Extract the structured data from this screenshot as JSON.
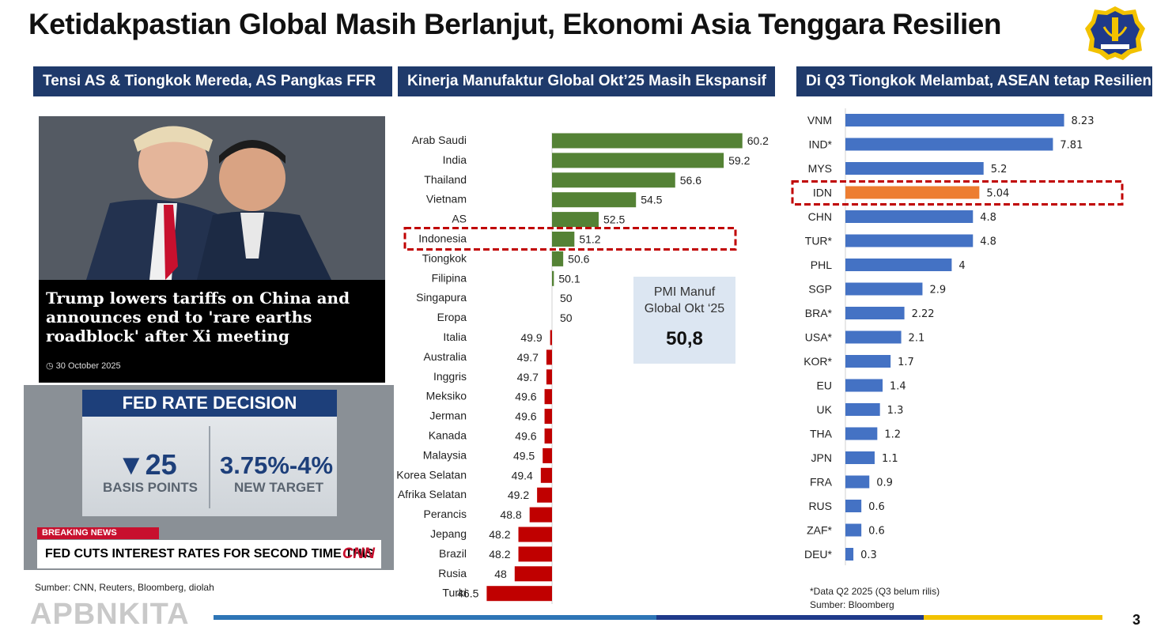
{
  "title": "Ketidakpastian Global Masih Berlanjut, Ekonomi Asia Tenggara Resilien",
  "panels": {
    "left_header": "Tensi AS & Tiongkok Mereda, AS Pangkas FFR",
    "middle_header": "Kinerja Manufaktur Global Okt’25 Masih Ekspansif",
    "right_header": "Di Q3 Tiongkok Melambat, ASEAN tetap Resilien"
  },
  "news_card": {
    "headline": "Trump lowers tariffs on China and announces end to 'rare earths roadblock' after Xi meeting",
    "date": "30 October 2025"
  },
  "fed_card": {
    "title": "FED RATE DECISION",
    "cut_value": "25",
    "cut_label": "BASIS POINTS",
    "target_value": "3.75%-4%",
    "target_label": "NEW TARGET",
    "breaking": "BREAKING NEWS",
    "ticker": "FED CUTS INTEREST RATES FOR SECOND TIME THIS YEAR",
    "network": "CNN"
  },
  "source_left": "Sumber: CNN, Reuters, Bloomberg, diolah",
  "brand": "APBNKITA",
  "page_number": "3",
  "pmi_box": {
    "label_line1": "PMI Manuf",
    "label_line2": "Global Okt ‘25",
    "value": "50,8"
  },
  "footnote": {
    "line1": "*Data Q2 2025 (Q3 belum rilis)",
    "line2": "Sumber: Bloomberg"
  },
  "colors": {
    "header_bg": "#1f3a6b",
    "above_50": "#548235",
    "below_50": "#c00000",
    "gdp_bar": "#4472c4",
    "gdp_highlight": "#ed7d31",
    "highlight_border": "#c00000"
  },
  "chart_data": [
    {
      "type": "bar",
      "orientation": "horizontal",
      "baseline": 50,
      "categories": [
        "Arab Saudi",
        "India",
        "Thailand",
        "Vietnam",
        "AS",
        "Indonesia",
        "Tiongkok",
        "Filipina",
        "Singapura",
        "Eropa",
        "Italia",
        "Australia",
        "Inggris",
        "Meksiko",
        "Jerman",
        "Kanada",
        "Malaysia",
        "Korea Selatan",
        "Afrika Selatan",
        "Perancis",
        "Jepang",
        "Brazil",
        "Rusia",
        "Turki"
      ],
      "values": [
        60.2,
        59.2,
        56.6,
        54.5,
        52.5,
        51.2,
        50.6,
        50.1,
        50,
        50,
        49.9,
        49.7,
        49.7,
        49.6,
        49.6,
        49.6,
        49.5,
        49.4,
        49.2,
        48.8,
        48.2,
        48.2,
        48,
        46.5
      ],
      "value_labels": [
        "60.2",
        "59.2",
        "56.6",
        "54.5",
        "52.5",
        "51.2",
        "50.6",
        "50.1",
        "50",
        "50",
        "49.9",
        "49.7",
        "49.7",
        "49.6",
        "49.6",
        "49.6",
        "49.5",
        "49.4",
        "49.2",
        "48.8",
        "48.2",
        "48.2",
        "48",
        "46.5"
      ],
      "highlight": "Indonesia"
    },
    {
      "type": "bar",
      "orientation": "horizontal",
      "categories": [
        "VNM",
        "IND*",
        "MYS",
        "IDN",
        "CHN",
        "TUR*",
        "PHL",
        "SGP",
        "BRA*",
        "USA*",
        "KOR*",
        "EU",
        "UK",
        "THA",
        "JPN",
        "FRA",
        "RUS",
        "ZAF*",
        "DEU*"
      ],
      "values": [
        8.23,
        7.81,
        5.2,
        5.04,
        4.8,
        4.8,
        4,
        2.9,
        2.22,
        2.1,
        1.7,
        1.4,
        1.3,
        1.2,
        1.1,
        0.9,
        0.6,
        0.6,
        0.3
      ],
      "value_labels": [
        "8.23",
        "7.81",
        "5.2",
        "5.04",
        "4.8",
        "4.8",
        "4",
        "2.9",
        "2.22",
        "2.1",
        "1.7",
        "1.4",
        "1.3",
        "1.2",
        "1.1",
        "0.9",
        "0.6",
        "0.6",
        "0.3"
      ],
      "highlight": "IDN"
    }
  ]
}
